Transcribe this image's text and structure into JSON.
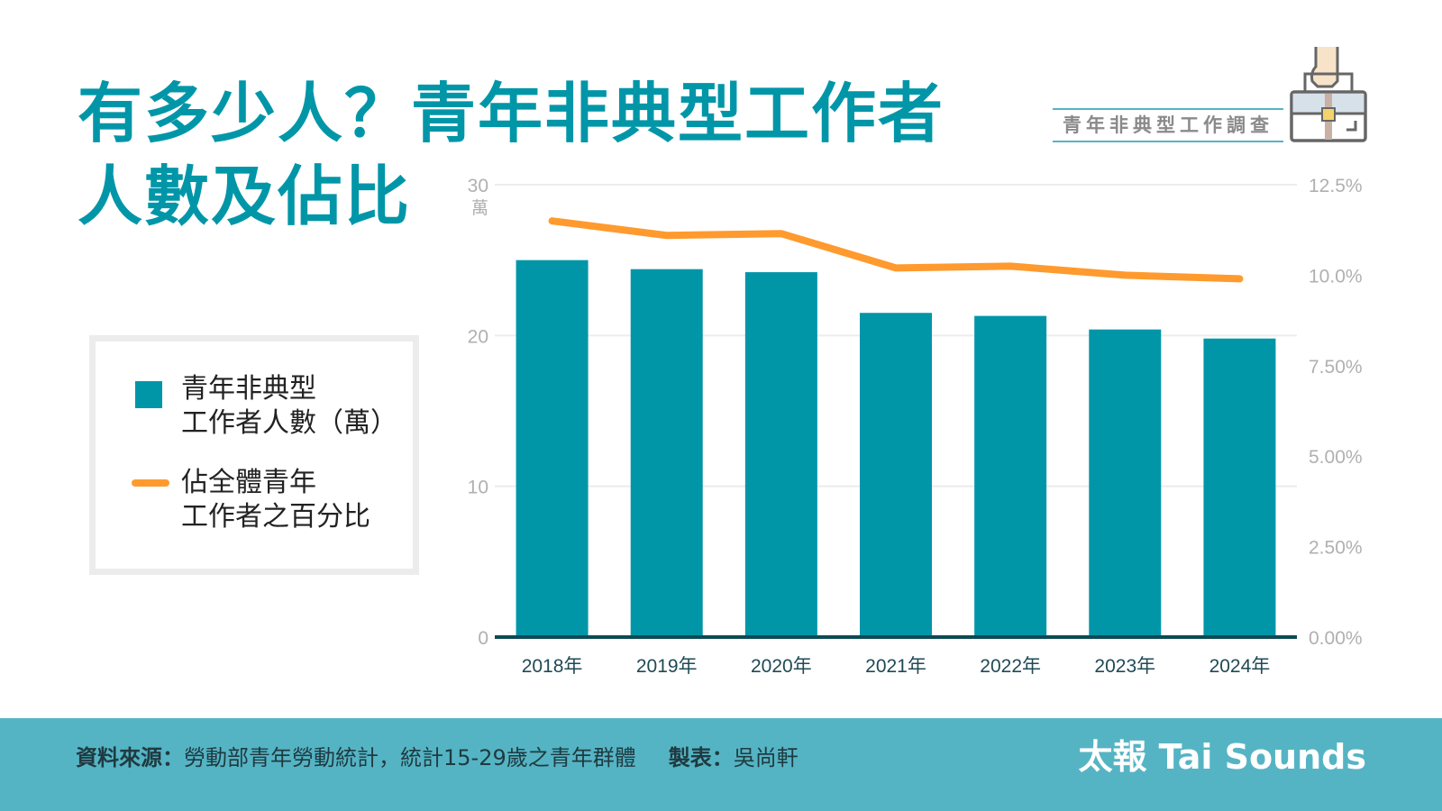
{
  "title": {
    "line1": "有多少人？青年非典型工作者",
    "line2": "人數及佔比"
  },
  "badge": "青年非典型工作調查",
  "legend": {
    "bars_line1": "青年非典型",
    "bars_line2": "工作者人數（萬）",
    "line_line1": "佔全體青年",
    "line_line2": "工作者之百分比"
  },
  "footer": {
    "source_label": "資料來源：",
    "source_text": "勞動部青年勞動統計，統計15-29歲之青年群體",
    "maker_label": "製表：",
    "maker_text": "吳尚軒",
    "brand": "太報 Tai Sounds"
  },
  "colors": {
    "bar": "#0096a8",
    "line": "#ff9a2e",
    "title": "#0096a8",
    "footer": "#55b4c4"
  },
  "chart_data": {
    "type": "bar+line",
    "categories": [
      "2018年",
      "2019年",
      "2020年",
      "2021年",
      "2022年",
      "2023年",
      "2024年"
    ],
    "series": [
      {
        "name": "青年非典型工作者人數（萬）",
        "type": "bar",
        "axis": "left",
        "values": [
          25.0,
          24.4,
          24.2,
          21.5,
          21.3,
          20.4,
          19.8
        ]
      },
      {
        "name": "佔全體青年工作者之百分比",
        "type": "line",
        "axis": "right",
        "values": [
          11.5,
          11.1,
          11.15,
          10.2,
          10.25,
          10.0,
          9.9
        ]
      }
    ],
    "left_axis": {
      "range": [
        0,
        30
      ],
      "ticks": [
        "0",
        "10",
        "20",
        "30"
      ],
      "unit": "萬"
    },
    "right_axis": {
      "range": [
        0,
        12.5
      ],
      "ticks": [
        "0.00%",
        "2.50%",
        "5.00%",
        "7.50%",
        "10.0%",
        "12.5%"
      ]
    },
    "grid": true,
    "legend_position": "left"
  }
}
